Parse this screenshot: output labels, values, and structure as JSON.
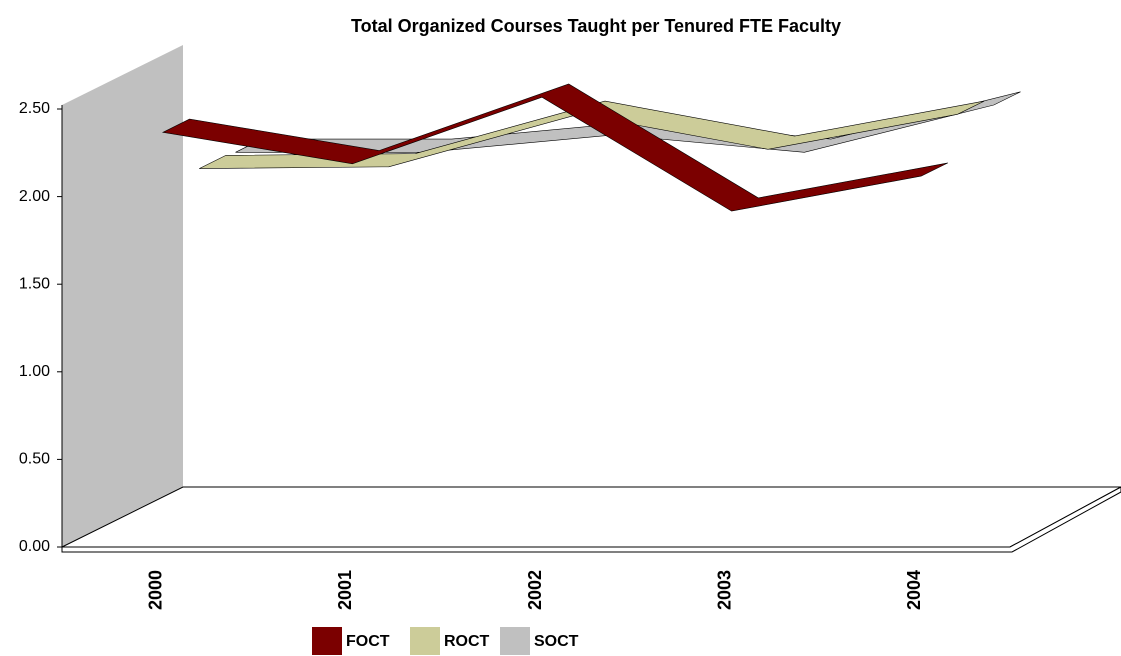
{
  "chart_data": {
    "type": "line3d",
    "title": "Total Organized Courses Taught per Tenured FTE Faculty",
    "categories": [
      "2000",
      "2001",
      "2002",
      "2003",
      "2004"
    ],
    "series": [
      {
        "name": "FOCT",
        "color": "#7b0000",
        "values": [
          2.35,
          2.17,
          2.55,
          1.9,
          2.1
        ]
      },
      {
        "name": "ROCT",
        "color": "#cccc99",
        "values": [
          2.04,
          2.05,
          2.35,
          2.15,
          2.35
        ]
      },
      {
        "name": "SOCT",
        "color": "#c0c0c0",
        "values": [
          2.03,
          2.03,
          2.13,
          2.03,
          2.3
        ]
      }
    ],
    "ylim": [
      0,
      2.5
    ],
    "yticks": [
      {
        "value": 0,
        "label": "0.00"
      },
      {
        "value": 0.5,
        "label": "0.50"
      },
      {
        "value": 1,
        "label": "1.00"
      },
      {
        "value": 1.5,
        "label": "1.50"
      },
      {
        "value": 2,
        "label": "2.00"
      },
      {
        "value": 2.5,
        "label": "2.50"
      }
    ]
  }
}
